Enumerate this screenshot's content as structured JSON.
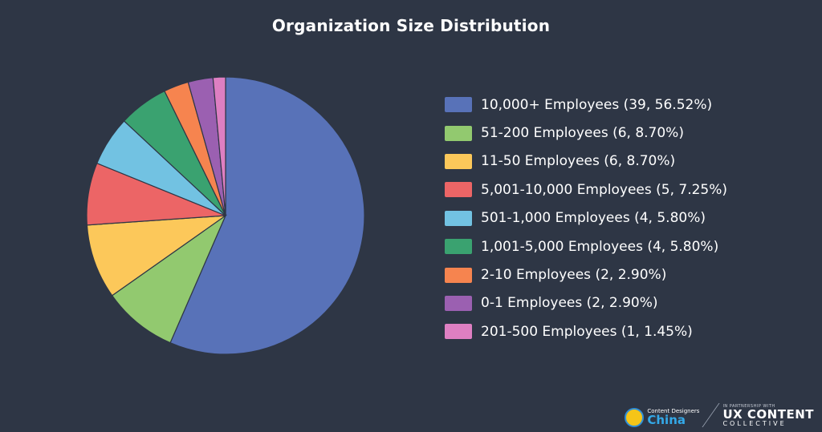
{
  "chart_data": {
    "type": "pie",
    "title": "Organization Size Distribution",
    "legend_position": "right",
    "slices": [
      {
        "label": "10,000+ Employees (39, 56.52%)",
        "value": 39,
        "color": "#5872b8"
      },
      {
        "label": "51-200 Employees (6, 8.70%)",
        "value": 6,
        "color": "#92c96f"
      },
      {
        "label": "11-50 Employees (6, 8.70%)",
        "value": 6,
        "color": "#fcc85a"
      },
      {
        "label": "5,001-10,000 Employees (5, 7.25%)",
        "value": 5,
        "color": "#ec6566"
      },
      {
        "label": "501-1,000 Employees (4, 5.80%)",
        "value": 4,
        "color": "#72c2e2"
      },
      {
        "label": "1,001-5,000 Employees (4, 5.80%)",
        "value": 4,
        "color": "#3aa270"
      },
      {
        "label": "2-10 Employees (2, 2.90%)",
        "value": 2,
        "color": "#f6844f"
      },
      {
        "label": "0-1 Employees (2, 2.90%)",
        "value": 2,
        "color": "#9b60b1"
      },
      {
        "label": "201-500 Employees (1, 1.45%)",
        "value": 1,
        "color": "#de7fc2"
      }
    ]
  },
  "branding": {
    "cdc_small": "Content Designers",
    "cdc_big": "China",
    "uxcc_small": "IN PARTNERSHIP WITH",
    "uxcc_big": "UX CONTENT",
    "uxcc_sub": "COLLECTIVE"
  }
}
